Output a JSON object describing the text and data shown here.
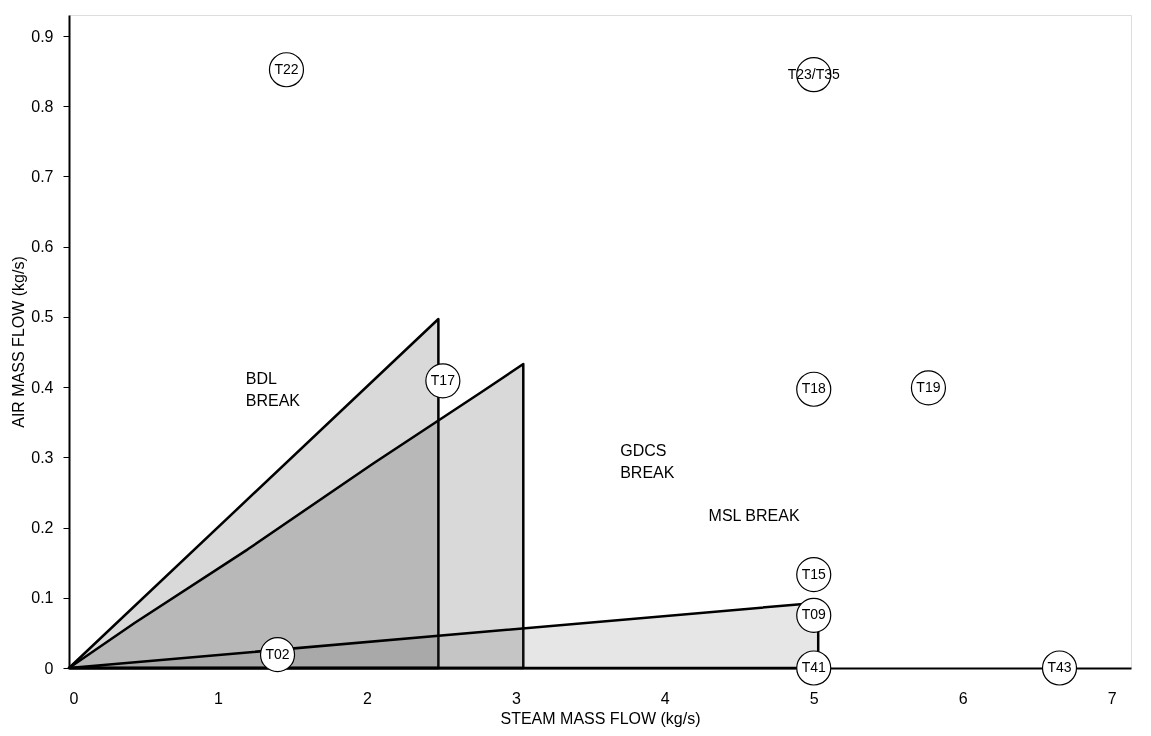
{
  "chart_data": {
    "type": "area",
    "xlabel": "STEAM MASS FLOW (kg/s)",
    "ylabel": "AIR MASS FLOW (kg/s)",
    "xlim": [
      0,
      7.13
    ],
    "xticks": [
      0,
      1,
      2,
      3,
      4,
      5,
      6,
      7
    ],
    "ylim": [
      0,
      0.93
    ],
    "yticks": [
      0,
      0.1,
      0.2,
      0.3,
      0.4,
      0.5,
      0.6,
      0.7,
      0.8,
      0.9
    ],
    "grid": false,
    "series": [
      {
        "color": "#000000",
        "x": [
          0,
          2.48,
          2.48
        ],
        "values": [
          0,
          0.497,
          0
        ]
      },
      {
        "color": "#000000",
        "x": [
          0,
          0.44,
          1.2,
          2.04,
          2.77,
          3.05,
          3.05
        ],
        "values": [
          0,
          0.064,
          0.169,
          0.291,
          0.393,
          0.433,
          0
        ]
      },
      {
        "color": "#555555",
        "x": [
          0,
          5.03
        ],
        "values": [
          0,
          0.093
        ]
      },
      {
        "type": "scatter",
        "color": "#000000",
        "marker": "circle",
        "x": [
          1.46,
          2.51,
          1.4,
          5.0,
          5.0,
          5.77,
          5.0,
          5.0,
          5.0,
          6.65
        ],
        "values": [
          0.852,
          0.409,
          0.019,
          0.845,
          0.397,
          0.399,
          0.133,
          0.075,
          0,
          0
        ],
        "value_labels": [
          "T22",
          "T17",
          "T02",
          "T23/T35",
          "T18",
          "T19",
          "T15",
          "T09",
          "T41",
          "T43"
        ]
      }
    ],
    "annotations": [
      "BDL\nBREAK",
      "GDCS\nBREAK",
      "MSL BREAK"
    ]
  }
}
